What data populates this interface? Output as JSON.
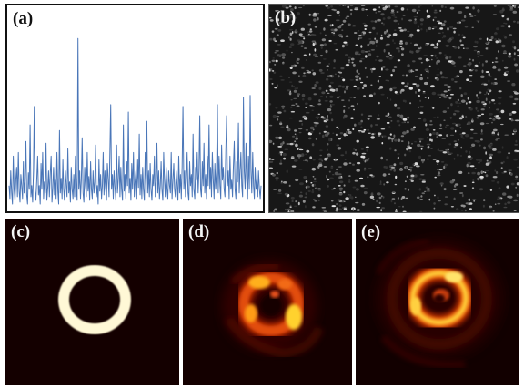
{
  "panels": {
    "a": {
      "label": "(a)"
    },
    "b": {
      "label": "(b)"
    },
    "c": {
      "label": "(c)"
    },
    "d": {
      "label": "(d)"
    },
    "e": {
      "label": "(e)"
    }
  },
  "chart_data": {
    "type": "line",
    "title": "",
    "xlabel": "",
    "ylabel": "",
    "grid": false,
    "ylim": [
      0,
      1
    ],
    "series_color": "#4a76b8",
    "values": [
      0.12,
      0.05,
      0.2,
      0.08,
      0.02,
      0.28,
      0.1,
      0.04,
      0.15,
      0.22,
      0.06,
      0.3,
      0.09,
      0.03,
      0.18,
      0.12,
      0.05,
      0.25,
      0.08,
      0.14,
      0.36,
      0.07,
      0.02,
      0.19,
      0.1,
      0.45,
      0.06,
      0.12,
      0.03,
      0.2,
      0.55,
      0.09,
      0.04,
      0.16,
      0.28,
      0.07,
      0.12,
      0.02,
      0.24,
      0.1,
      0.3,
      0.05,
      0.14,
      0.08,
      0.35,
      0.04,
      0.11,
      0.2,
      0.06,
      0.18,
      0.28,
      0.03,
      0.1,
      0.22,
      0.07,
      0.15,
      0.05,
      0.3,
      0.09,
      0.02,
      0.42,
      0.08,
      0.16,
      0.05,
      0.26,
      0.1,
      0.04,
      0.2,
      0.12,
      0.06,
      0.32,
      0.08,
      0.14,
      0.03,
      0.22,
      0.1,
      0.05,
      0.18,
      0.06,
      0.28,
      0.12,
      0.04,
      0.92,
      0.1,
      0.2,
      0.05,
      0.15,
      0.38,
      0.08,
      0.03,
      0.22,
      0.12,
      0.06,
      0.3,
      0.09,
      0.17,
      0.04,
      0.25,
      0.1,
      0.05,
      0.2,
      0.08,
      0.14,
      0.34,
      0.06,
      0.12,
      0.02,
      0.26,
      0.09,
      0.18,
      0.05,
      0.12,
      0.3,
      0.07,
      0.2,
      0.1,
      0.04,
      0.24,
      0.15,
      0.06,
      0.3,
      0.56,
      0.1,
      0.18,
      0.05,
      0.2,
      0.12,
      0.04,
      0.34,
      0.08,
      0.15,
      0.28,
      0.06,
      0.22,
      0.1,
      0.04,
      0.45,
      0.09,
      0.18,
      0.05,
      0.25,
      0.12,
      0.52,
      0.08,
      0.16,
      0.04,
      0.24,
      0.1,
      0.3,
      0.06,
      0.14,
      0.2,
      0.05,
      0.26,
      0.11,
      0.4,
      0.07,
      0.18,
      0.05,
      0.22,
      0.1,
      0.04,
      0.3,
      0.12,
      0.47,
      0.08,
      0.2,
      0.06,
      0.24,
      0.1,
      0.04,
      0.18,
      0.12,
      0.28,
      0.06,
      0.15,
      0.35,
      0.08,
      0.2,
      0.05,
      0.12,
      0.25,
      0.1,
      0.04,
      0.3,
      0.15,
      0.06,
      0.22,
      0.1,
      0.05,
      0.2,
      0.12,
      0.08,
      0.3,
      0.05,
      0.15,
      0.24,
      0.1,
      0.06,
      0.2,
      0.12,
      0.04,
      0.28,
      0.08,
      0.18,
      0.05,
      0.22,
      0.55,
      0.1,
      0.2,
      0.06,
      0.15,
      0.3,
      0.08,
      0.04,
      0.25,
      0.12,
      0.18,
      0.06,
      0.4,
      0.1,
      0.05,
      0.22,
      0.15,
      0.3,
      0.08,
      0.2,
      0.5,
      0.1,
      0.06,
      0.25,
      0.12,
      0.35,
      0.08,
      0.18,
      0.05,
      0.28,
      0.12,
      0.45,
      0.1,
      0.22,
      0.06,
      0.3,
      0.15,
      0.05,
      0.24,
      0.1,
      0.2,
      0.56,
      0.08,
      0.28,
      0.12,
      0.05,
      0.34,
      0.15,
      0.22,
      0.1,
      0.06,
      0.3,
      0.5,
      0.12,
      0.2,
      0.05,
      0.28,
      0.1,
      0.15,
      0.06,
      0.22,
      0.36,
      0.1,
      0.05,
      0.25,
      0.14,
      0.46,
      0.08,
      0.2,
      0.3,
      0.12,
      0.06,
      0.6,
      0.2,
      0.1,
      0.35,
      0.15,
      0.05,
      0.28,
      0.1,
      0.61,
      0.2,
      0.08,
      0.3,
      0.12,
      0.05,
      0.22,
      0.1,
      0.15,
      0.06,
      0.2,
      0.1,
      0.05,
      0.12
    ]
  }
}
